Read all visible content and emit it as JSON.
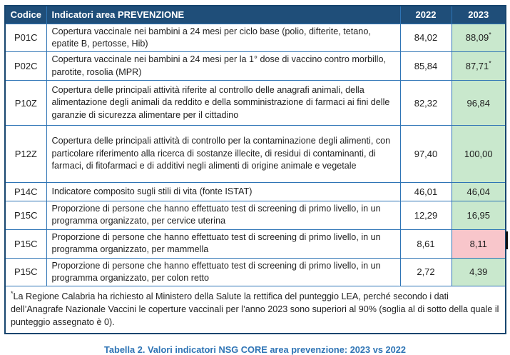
{
  "table": {
    "headers": {
      "codice": "Codice",
      "indicator": "Indicatori area PREVENZIONE",
      "y2022": "2022",
      "y2023": "2023"
    },
    "rows": [
      {
        "code": "P01C",
        "indicator": "Copertura vaccinale nei bambini a 24 mesi per ciclo base (polio, difterite, tetano, epatite B, pertosse, Hib)",
        "v2022": "84,02",
        "v2023": "88,09",
        "note_marker": "*",
        "status2023": "positive"
      },
      {
        "code": "P02C",
        "indicator": "Copertura vaccinale nei bambini a 24 mesi per la 1° dose di vaccino contro morbillo, parotite, rosolia (MPR)",
        "v2022": "85,84",
        "v2023": "87,71",
        "note_marker": "*",
        "status2023": "positive"
      },
      {
        "code": "P10Z",
        "indicator": "Copertura delle principali attività riferite al controllo delle anagrafi animali, della alimentazione degli animali da reddito e della somministrazione di farmaci ai fini delle garanzie di sicurezza alimentare per il cittadino",
        "v2022": "82,32",
        "v2023": "96,84",
        "note_marker": "",
        "status2023": "positive"
      },
      {
        "code": "P12Z",
        "indicator": "Copertura delle principali attività di controllo per la contaminazione degli alimenti, con particolare riferimento alla ricerca di sostanze illecite, di residui di contaminanti, di farmaci, di fitofarmaci e di additivi negli alimenti di origine animale e vegetale",
        "v2022": "97,40",
        "v2023": "100,00",
        "note_marker": "",
        "status2023": "positive"
      },
      {
        "code": "P14C",
        "indicator": "Indicatore composito sugli stili di vita (fonte ISTAT)",
        "v2022": "46,01",
        "v2023": "46,04",
        "note_marker": "",
        "status2023": "positive"
      },
      {
        "code": "P15C",
        "indicator": "Proporzione di persone che hanno effettuato test di screening di primo livello, in un programma organizzato, per cervice uterina",
        "v2022": "12,29",
        "v2023": "16,95",
        "note_marker": "",
        "status2023": "positive"
      },
      {
        "code": "P15C",
        "indicator": "Proporzione di persone che hanno effettuato test di screening di primo livello, in un programma organizzato, per mammella",
        "v2022": "8,61",
        "v2023": "8,11",
        "note_marker": "",
        "status2023": "negative"
      },
      {
        "code": "P15C",
        "indicator": "Proporzione di persone che hanno effettuato test di screening di primo livello, in un programma organizzato, per colon retto",
        "v2022": "2,72",
        "v2023": "4,39",
        "note_marker": "",
        "status2023": "positive"
      }
    ],
    "footnote_marker": "*",
    "footnote_text": "La Regione Calabria ha richiesto al Ministero della Salute la rettifica del punteggio LEA, perché secondo i dati dell’Anagrafe Nazionale Vaccini le coperture vaccinali per l’anno 2023 sono superiori al 90% (soglia al di sotto della quale il punteggio assegnato è 0)."
  },
  "caption": "Tabella 2. Valori indicatori NSG CORE area prevenzione: 2023 vs 2022",
  "colors": {
    "header_bg": "#1f4e79",
    "border_inner": "#2e74b5",
    "border_outer": "#17456e",
    "positive_bg": "#c9e8cd",
    "negative_bg": "#f8c6cb",
    "caption_color": "#2e74b5"
  }
}
